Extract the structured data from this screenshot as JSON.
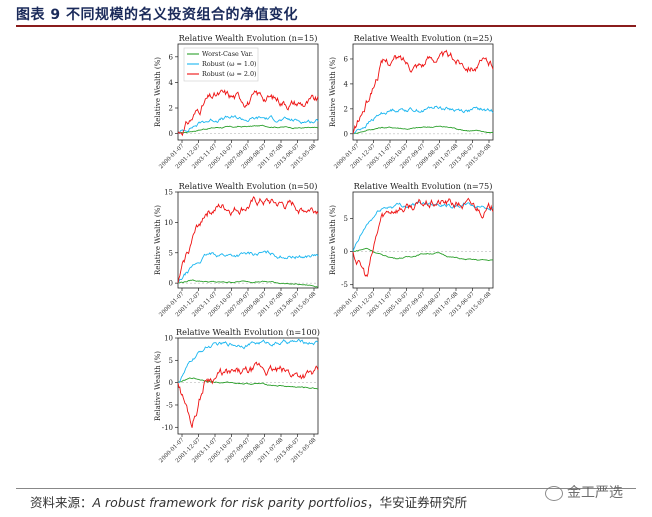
{
  "header": {
    "title": "图表 9 不同规模的名义投资组合的净值变化"
  },
  "footer": {
    "source_prefix": "资料来源：",
    "source_italic": "A robust framework for risk parity portfolios",
    "source_suffix": "，华安证券研究所",
    "watermark": "金工严选"
  },
  "colors": {
    "worst": "#2ca02c",
    "robust1": "#1ab6f0",
    "robust2": "#ee1111"
  },
  "legend": {
    "worst": "Worst-Case Var.",
    "robust1": "Robust (ω = 1.0)",
    "robust2": "Robust (ω = 2.0)"
  },
  "chart_data": [
    {
      "type": "line",
      "title": "Relative Wealth Evolution (n=15)",
      "ylabel": "Relative Wealth (%)",
      "ylim": [
        -0.5,
        7
      ],
      "yticks": [
        0,
        2,
        4,
        6
      ],
      "xticks": [
        "2000-01-07",
        "2001-12-07",
        "2003-11-07",
        "2005-10-07",
        "2007-09-07",
        "2009-08-07",
        "2011-07-08",
        "2013-06-07",
        "2015-05-08"
      ],
      "legend_position": "top-left",
      "series": [
        {
          "name": "Worst-Case Var.",
          "key": "worst",
          "values": [
            0,
            0.2,
            0.4,
            0.5,
            0.5,
            0.55,
            0.6,
            0.55,
            0.5,
            0.45,
            0.4
          ]
        },
        {
          "name": "Robust (ω = 1.0)",
          "key": "robust1",
          "values": [
            0,
            0.6,
            1.0,
            1.2,
            1.2,
            1.1,
            1.2,
            1.15,
            1.0,
            1.0,
            1.0
          ]
        },
        {
          "name": "Robust (ω = 2.0)",
          "key": "robust2",
          "values": [
            0,
            1.2,
            2.6,
            2.9,
            2.8,
            2.7,
            2.9,
            2.7,
            2.5,
            2.4,
            2.4
          ]
        }
      ]
    },
    {
      "type": "line",
      "title": "Relative Wealth Evolution (n=25)",
      "ylabel": "Relative Wealth (%)",
      "ylim": [
        -0.5,
        7.2
      ],
      "yticks": [
        0,
        2,
        4,
        6
      ],
      "xticks": [
        "2000-01-07",
        "2001-12-07",
        "2003-11-07",
        "2005-10-07",
        "2007-09-07",
        "2009-08-07",
        "2011-07-08",
        "2013-06-07",
        "2015-05-08"
      ],
      "series": [
        {
          "name": "Worst-Case Var.",
          "key": "worst",
          "values": [
            0,
            0.3,
            0.5,
            0.5,
            0.4,
            0.5,
            0.6,
            0.5,
            0.3,
            0.2,
            0.1
          ]
        },
        {
          "name": "Robust (ω = 1.0)",
          "key": "robust1",
          "values": [
            0,
            0.8,
            1.6,
            2.0,
            2.0,
            1.9,
            2.2,
            2.0,
            1.9,
            1.9,
            1.8
          ]
        },
        {
          "name": "Robust (ω = 2.0)",
          "key": "robust2",
          "values": [
            0,
            2.5,
            5.5,
            6.0,
            5.6,
            5.8,
            6.3,
            5.9,
            5.8,
            5.6,
            5.5
          ]
        }
      ]
    },
    {
      "type": "line",
      "title": "Relative Wealth Evolution (n=50)",
      "ylabel": "Relative Wealth (%)",
      "ylim": [
        -0.8,
        15
      ],
      "yticks": [
        0,
        5,
        10,
        15
      ],
      "xticks": [
        "2000-01-07",
        "2001-12-07",
        "2003-11-07",
        "2005-10-07",
        "2007-09-07",
        "2009-08-07",
        "2011-07-08",
        "2013-06-07",
        "2015-05-08"
      ],
      "series": [
        {
          "name": "Worst-Case Var.",
          "key": "worst",
          "values": [
            0,
            0.5,
            0.3,
            0.1,
            0.2,
            0.3,
            0.3,
            0.1,
            -0.1,
            -0.3,
            -0.5
          ]
        },
        {
          "name": "Robust (ω = 1.0)",
          "key": "robust1",
          "values": [
            0,
            2.5,
            4.5,
            4.8,
            4.6,
            4.7,
            4.9,
            4.6,
            4.5,
            4.4,
            4.5
          ]
        },
        {
          "name": "Robust (ω = 2.0)",
          "key": "robust2",
          "values": [
            0,
            7,
            12,
            12.5,
            12.3,
            12.8,
            13.3,
            12.8,
            12.6,
            12.5,
            12.5
          ]
        }
      ]
    },
    {
      "type": "line",
      "title": "Relative Wealth Evolution (n=75)",
      "ylabel": "Relative Wealth (%)",
      "ylim": [
        -5.5,
        9
      ],
      "yticks": [
        -5,
        0,
        5
      ],
      "xticks": [
        "2000-01-07",
        "2001-12-07",
        "2003-11-07",
        "2005-10-07",
        "2007-09-07",
        "2009-08-07",
        "2011-07-08",
        "2013-06-07",
        "2015-05-08"
      ],
      "series": [
        {
          "name": "Worst-Case Var.",
          "key": "worst",
          "values": [
            0,
            0.5,
            -0.5,
            -1.0,
            -0.8,
            -0.3,
            -0.2,
            -0.8,
            -1.2,
            -1.3,
            -1.3
          ]
        },
        {
          "name": "Robust (ω = 1.0)",
          "key": "robust1",
          "values": [
            0,
            4,
            6.5,
            7,
            7,
            7.2,
            7.5,
            7,
            7,
            6.8,
            6.8
          ]
        },
        {
          "name": "Robust (ω = 2.0)",
          "key": "robust2",
          "values": [
            0,
            -4,
            5,
            6.8,
            6.7,
            7,
            7.4,
            7.2,
            7,
            6.5,
            6.3
          ]
        }
      ]
    },
    {
      "type": "line",
      "title": "Relative Wealth Evolution (n=100)",
      "ylabel": "Relative Wealth (%)",
      "ylim": [
        -11.5,
        10
      ],
      "yticks": [
        -10,
        -5,
        0,
        5,
        10
      ],
      "xticks": [
        "2000-01-07",
        "2001-12-07",
        "2003-11-07",
        "2005-10-07",
        "2007-09-07",
        "2009-08-07",
        "2011-07-08",
        "2013-06-07",
        "2015-05-08"
      ],
      "series": [
        {
          "name": "Worst-Case Var.",
          "key": "worst",
          "values": [
            0,
            1,
            0.5,
            0,
            0,
            -0.2,
            -0.3,
            -0.6,
            -0.9,
            -1.1,
            -1.3
          ]
        },
        {
          "name": "Robust (ω = 1.0)",
          "key": "robust1",
          "values": [
            0,
            5,
            8,
            8.5,
            8.6,
            8.8,
            9.0,
            8.9,
            9.1,
            9.0,
            9.2
          ]
        },
        {
          "name": "Robust (ω = 2.0)",
          "key": "robust2",
          "values": [
            0,
            -9,
            1,
            2,
            1.5,
            2,
            3,
            2.5,
            2,
            2,
            1.8
          ]
        }
      ]
    }
  ]
}
